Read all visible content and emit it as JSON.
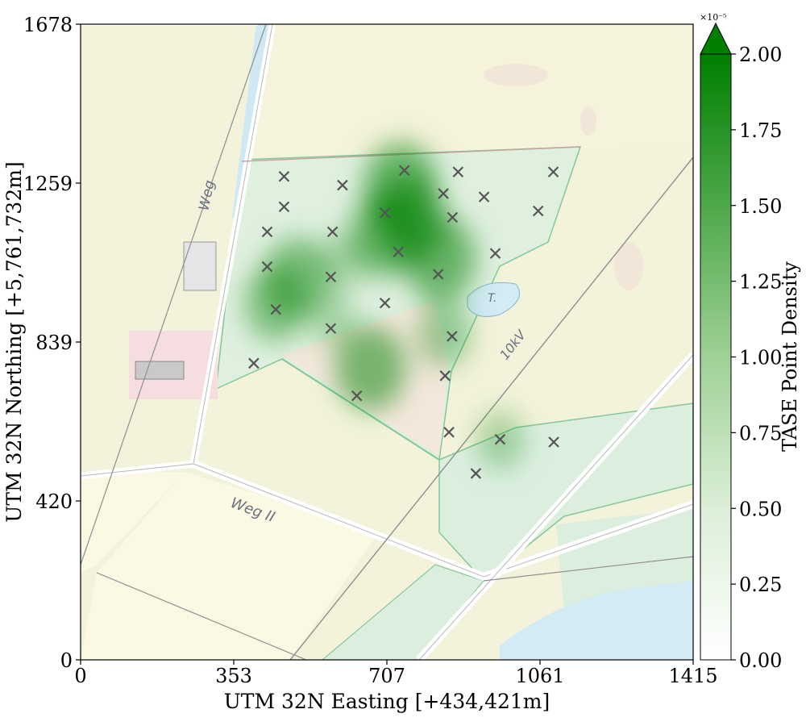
{
  "chart_data": {
    "type": "heatmap",
    "basemap": "topographic map",
    "xlabel": "UTM 32N Easting [+434,421m]",
    "ylabel": "UTM 32N Northing [+5,761,732m]",
    "xticks": [
      "0",
      "353",
      "707",
      "1061",
      "1415"
    ],
    "yticks": [
      "0",
      "420",
      "839",
      "1259",
      "1678"
    ],
    "xlim": [
      0,
      1415
    ],
    "ylim": [
      0,
      1678
    ],
    "map_labels": {
      "road1": "Weg",
      "road2": "Weg II",
      "powerline": "10kV",
      "pond": "T."
    },
    "colorbar": {
      "label": "TASE Point Density",
      "scale_label": "×10⁻⁵",
      "ticks": [
        "0.00",
        "0.25",
        "0.50",
        "0.75",
        "1.00",
        "1.25",
        "1.50",
        "1.75",
        "2.00"
      ],
      "range": [
        0,
        2.0
      ],
      "extend": "max",
      "colormap": "Greens",
      "color_low": "#ffffff",
      "color_high": "#007f00"
    },
    "marker": "x",
    "marker_color": "#555555",
    "points": [
      {
        "x": 470,
        "y": 1276
      },
      {
        "x": 748,
        "y": 1292
      },
      {
        "x": 872,
        "y": 1288
      },
      {
        "x": 1092,
        "y": 1288
      },
      {
        "x": 605,
        "y": 1253
      },
      {
        "x": 838,
        "y": 1231
      },
      {
        "x": 932,
        "y": 1222
      },
      {
        "x": 470,
        "y": 1196
      },
      {
        "x": 703,
        "y": 1180
      },
      {
        "x": 1057,
        "y": 1185
      },
      {
        "x": 859,
        "y": 1168
      },
      {
        "x": 431,
        "y": 1130
      },
      {
        "x": 582,
        "y": 1130
      },
      {
        "x": 734,
        "y": 1077
      },
      {
        "x": 958,
        "y": 1073
      },
      {
        "x": 431,
        "y": 1038
      },
      {
        "x": 578,
        "y": 1011
      },
      {
        "x": 826,
        "y": 1018
      },
      {
        "x": 703,
        "y": 942
      },
      {
        "x": 451,
        "y": 925
      },
      {
        "x": 578,
        "y": 875
      },
      {
        "x": 858,
        "y": 854
      },
      {
        "x": 400,
        "y": 783
      },
      {
        "x": 842,
        "y": 750
      },
      {
        "x": 638,
        "y": 697
      },
      {
        "x": 851,
        "y": 601
      },
      {
        "x": 969,
        "y": 582
      },
      {
        "x": 1093,
        "y": 575
      },
      {
        "x": 913,
        "y": 492
      }
    ],
    "density_hotspots": [
      {
        "x": 740,
        "y": 1250,
        "value": 1.6
      },
      {
        "x": 760,
        "y": 1160,
        "value": 1.55
      },
      {
        "x": 830,
        "y": 1060,
        "value": 1.5
      },
      {
        "x": 700,
        "y": 1120,
        "value": 1.4
      },
      {
        "x": 670,
        "y": 770,
        "value": 1.45
      },
      {
        "x": 500,
        "y": 1010,
        "value": 1.25
      },
      {
        "x": 450,
        "y": 940,
        "value": 1.1
      },
      {
        "x": 840,
        "y": 860,
        "value": 0.8
      },
      {
        "x": 970,
        "y": 580,
        "value": 0.55
      },
      {
        "x": 600,
        "y": 1050,
        "value": 0.45
      },
      {
        "x": 580,
        "y": 900,
        "value": 0.4
      }
    ]
  }
}
